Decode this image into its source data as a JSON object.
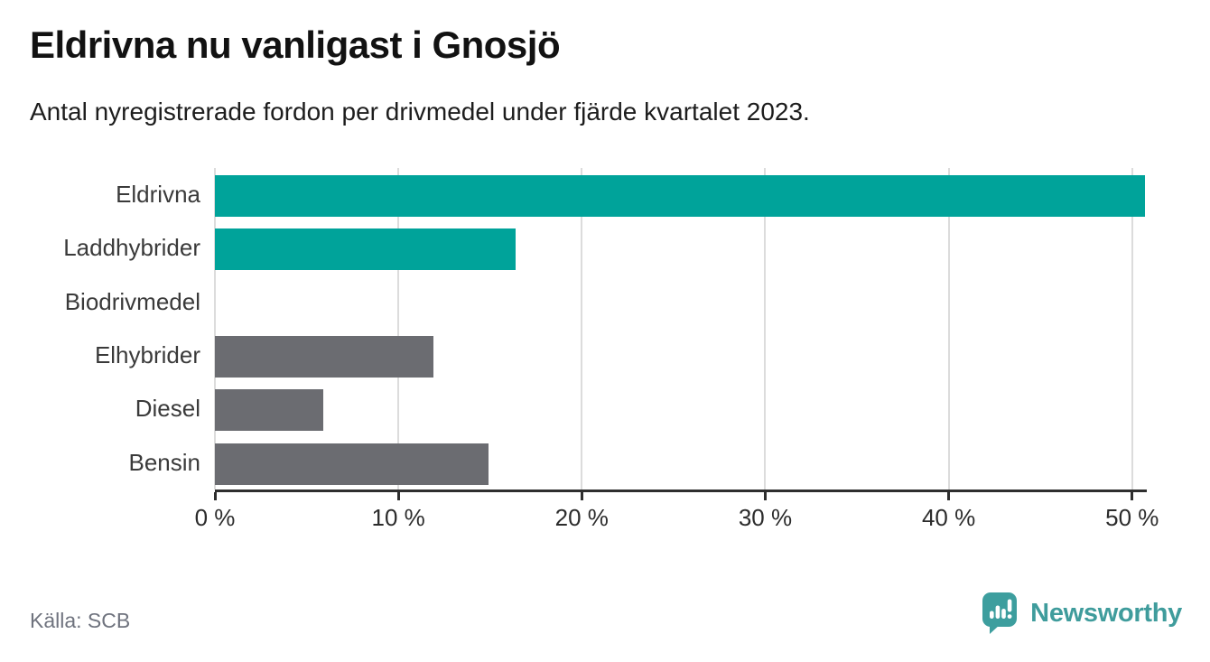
{
  "title": "Eldrivna nu vanligast i Gnosjö",
  "subtitle": "Antal nyregistrerade fordon per drivmedel under fjärde kvartalet 2023.",
  "footer": {
    "source": "Källa: SCB",
    "brand_name": "Newsworthy"
  },
  "colors": {
    "highlight": "#00a39a",
    "bar_default": "#6b6c71",
    "grid": "#dcdcdc",
    "axis": "#2e2e2e",
    "brand_teal": "#3f9c9c",
    "badge_teal": "#3d9e9e"
  },
  "chart_data": {
    "type": "bar",
    "orientation": "horizontal",
    "title": "Eldrivna nu vanligast i Gnosjö",
    "subtitle": "Antal nyregistrerade fordon per drivmedel under fjärde kvartalet 2023.",
    "categories": [
      "Eldrivna",
      "Laddhybrider",
      "Biodrivmedel",
      "Elhybrider",
      "Diesel",
      "Bensin"
    ],
    "values": [
      50.7,
      16.4,
      0,
      11.9,
      5.9,
      14.9
    ],
    "unit": "%",
    "bar_color_roles": [
      "highlight",
      "highlight",
      "default",
      "default",
      "default",
      "default"
    ],
    "xlim": [
      0,
      50.7
    ],
    "ticks": [
      {
        "value": 0,
        "label": "0 %"
      },
      {
        "value": 10,
        "label": "10 %"
      },
      {
        "value": 20,
        "label": "20 %"
      },
      {
        "value": 30,
        "label": "30 %"
      },
      {
        "value": 40,
        "label": "40 %"
      },
      {
        "value": 50,
        "label": "50 %"
      }
    ],
    "grid": true,
    "legend": false,
    "source": "Källa: SCB"
  }
}
